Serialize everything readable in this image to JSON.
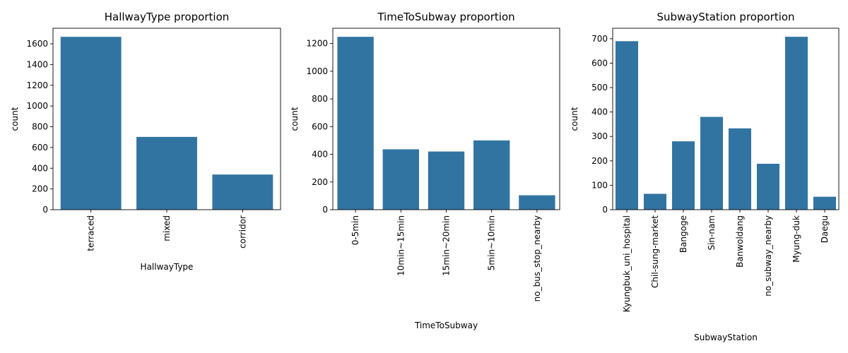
{
  "chart_data": [
    {
      "type": "bar",
      "title": "HallwayType proportion",
      "xlabel": "HallwayType",
      "ylabel": "count",
      "categories": [
        "terraced",
        "mixed",
        "corridor"
      ],
      "values": [
        1667,
        702,
        339
      ],
      "ylim": [
        0,
        1750
      ],
      "yticks": [
        0,
        200,
        400,
        600,
        800,
        1000,
        1200,
        1400,
        1600
      ],
      "grid": false,
      "legend": "none",
      "color": "#3274a1"
    },
    {
      "type": "bar",
      "title": "TimeToSubway proportion",
      "xlabel": "TimeToSubway",
      "ylabel": "count",
      "categories": [
        "0-5min",
        "10min~15min",
        "15min~20min",
        "5min~10min",
        "no_bus_stop_nearby"
      ],
      "values": [
        1248,
        436,
        420,
        500,
        104
      ],
      "ylim": [
        0,
        1310
      ],
      "yticks": [
        0,
        200,
        400,
        600,
        800,
        1000,
        1200
      ],
      "grid": false,
      "legend": "none",
      "color": "#3274a1"
    },
    {
      "type": "bar",
      "title": "SubwayStation proportion",
      "xlabel": "SubwayStation",
      "ylabel": "count",
      "categories": [
        "Kyungbuk_uni_hospital",
        "Chil-sung-market",
        "Bangoge",
        "Sin-nam",
        "Banwoldang",
        "no_subway_nearby",
        "Myung-duk",
        "Daegu"
      ],
      "values": [
        690,
        65,
        280,
        380,
        333,
        188,
        708,
        53
      ],
      "ylim": [
        0,
        743
      ],
      "yticks": [
        0,
        100,
        200,
        300,
        400,
        500,
        600,
        700
      ],
      "grid": false,
      "legend": "none",
      "color": "#3274a1"
    }
  ]
}
